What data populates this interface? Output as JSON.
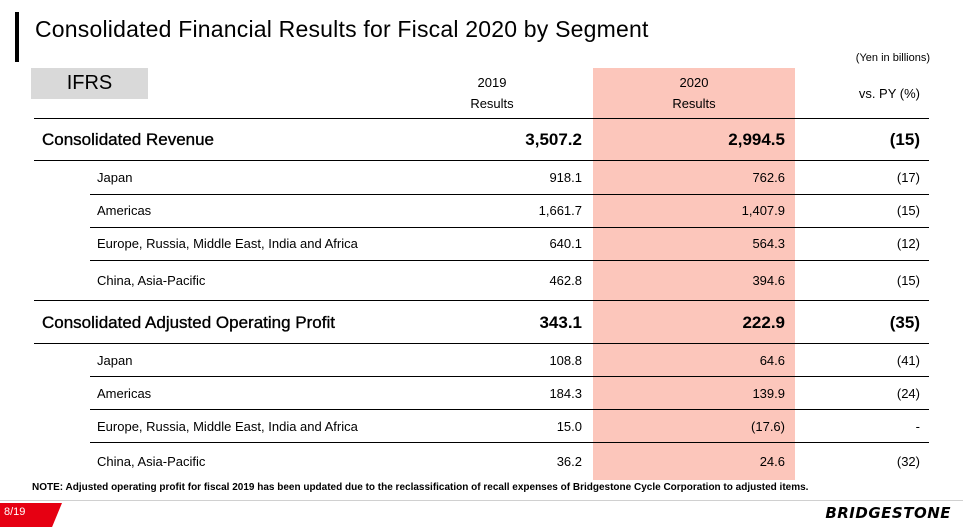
{
  "title": "Consolidated Financial Results for Fiscal 2020 by Segment",
  "unit_note": "(Yen in billions)",
  "standard_label": "IFRS",
  "columns": {
    "y2019_year": "2019",
    "y2019_sub": "Results",
    "y2020_year": "2020",
    "y2020_sub": "Results",
    "vs_py": "vs. PY (%)"
  },
  "rows": [
    {
      "label": "Consolidated Revenue",
      "v2019": "3,507.2",
      "v2020": "2,994.5",
      "vs": "(15)"
    },
    {
      "label": "Japan",
      "v2019": "918.1",
      "v2020": "762.6",
      "vs": "(17)"
    },
    {
      "label": "Americas",
      "v2019": "1,661.7",
      "v2020": "1,407.9",
      "vs": "(15)"
    },
    {
      "label": "Europe, Russia, Middle East, India and Africa",
      "v2019": "640.1",
      "v2020": "564.3",
      "vs": "(12)"
    },
    {
      "label": "China, Asia-Pacific",
      "v2019": "462.8",
      "v2020": "394.6",
      "vs": "(15)"
    },
    {
      "label": "Consolidated Adjusted Operating Profit",
      "v2019": "343.1",
      "v2020": "222.9",
      "vs": "(35)"
    },
    {
      "label": "Japan",
      "v2019": "108.8",
      "v2020": "64.6",
      "vs": "(41)"
    },
    {
      "label": "Americas",
      "v2019": "184.3",
      "v2020": "139.9",
      "vs": "(24)"
    },
    {
      "label": "Europe, Russia, Middle East, India and Africa",
      "v2019": "15.0",
      "v2020": "(17.6)",
      "vs": "-"
    },
    {
      "label": "China, Asia-Pacific",
      "v2019": "36.2",
      "v2020": "24.6",
      "vs": "(32)"
    }
  ],
  "note": "NOTE: Adjusted operating profit for fiscal 2019 has been updated due to the reclassification of recall expenses of Bridgestone Cycle Corporation to adjusted items.",
  "page_number": "8/19",
  "brand": "BRIDGESTONE",
  "colors": {
    "highlight": "#fcc6bb",
    "page_tab": "#e60012"
  }
}
